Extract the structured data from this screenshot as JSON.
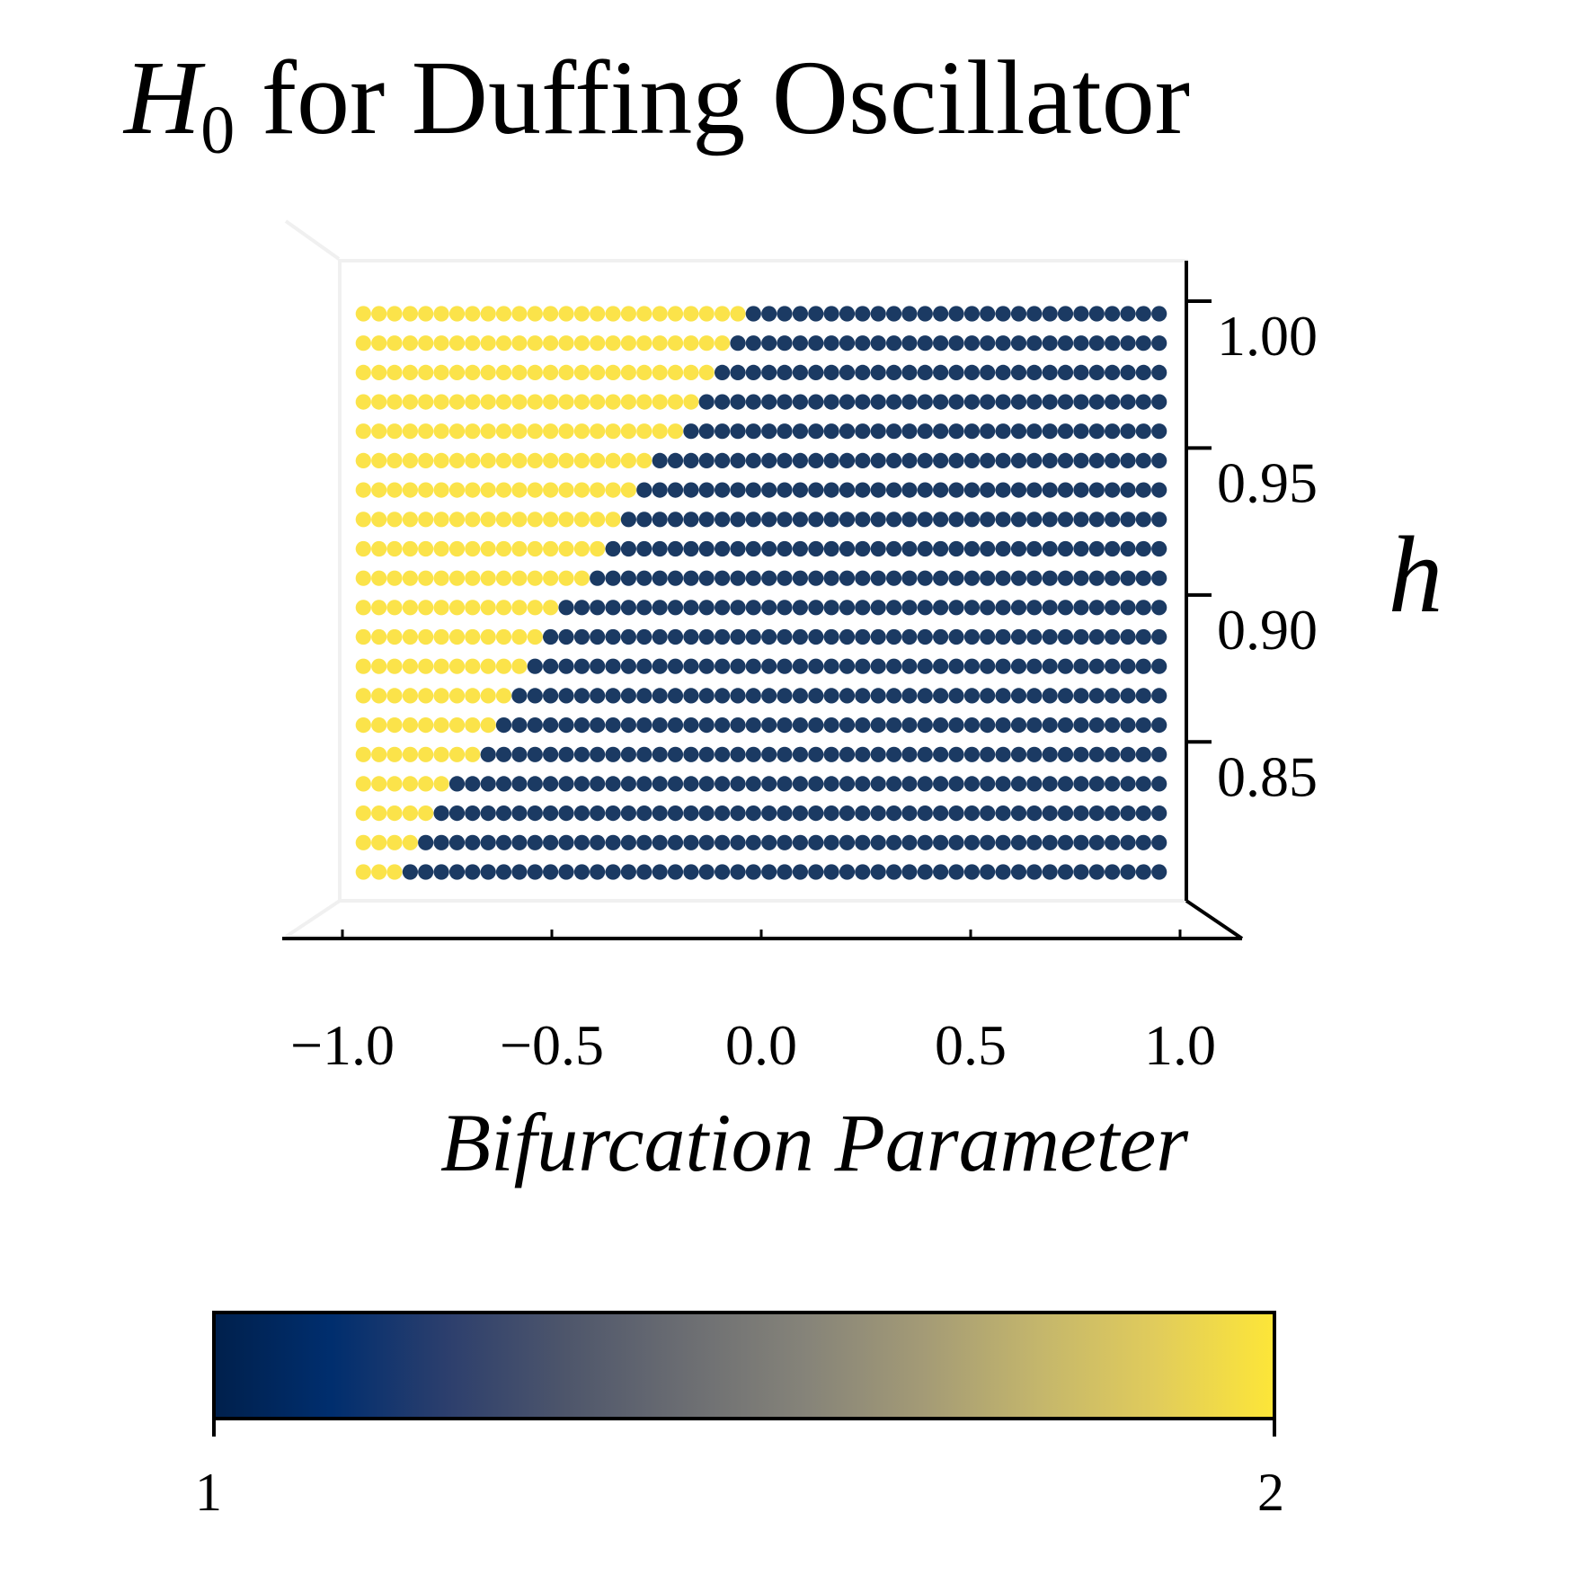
{
  "chart_data": {
    "type": "scatter",
    "title": {
      "main": "H",
      "subscript": "0",
      "rest": " for Duffing Oscillator"
    },
    "xlabel": "Bifurcation Parameter",
    "ylabel": "h",
    "xlim": [
      -1.1,
      1.1
    ],
    "ylim": [
      0.796,
      1.012
    ],
    "x_ticks": [
      -1.0,
      -0.5,
      0.0,
      0.5,
      1.0
    ],
    "x_tick_labels": [
      "−1.0",
      "−0.5",
      "0.0",
      "0.5",
      "1.0"
    ],
    "y_ticks": [
      0.85,
      0.9,
      0.95,
      1.0
    ],
    "y_tick_labels": [
      "0.85",
      "0.90",
      "0.95",
      "1.00"
    ],
    "grid": {
      "x_min": -0.95,
      "x_max": 0.95,
      "x_count": 52,
      "y_min": 0.81,
      "y_max": 1.0,
      "y_count": 20
    },
    "description": "Each dot is a grid point (bifurcation parameter, h) colored by H0 value; yellow = 2, dark blue = 1",
    "rows": [
      {
        "h": 1.0,
        "boundary_index": 25
      },
      {
        "h": 0.99,
        "boundary_index": 24
      },
      {
        "h": 0.98,
        "boundary_index": 23
      },
      {
        "h": 0.97,
        "boundary_index": 22
      },
      {
        "h": 0.96,
        "boundary_index": 21
      },
      {
        "h": 0.95,
        "boundary_index": 19
      },
      {
        "h": 0.94,
        "boundary_index": 18
      },
      {
        "h": 0.93,
        "boundary_index": 17
      },
      {
        "h": 0.92,
        "boundary_index": 16
      },
      {
        "h": 0.91,
        "boundary_index": 15
      },
      {
        "h": 0.9,
        "boundary_index": 13
      },
      {
        "h": 0.89,
        "boundary_index": 12
      },
      {
        "h": 0.88,
        "boundary_index": 11
      },
      {
        "h": 0.87,
        "boundary_index": 10
      },
      {
        "h": 0.86,
        "boundary_index": 9
      },
      {
        "h": 0.85,
        "boundary_index": 8
      },
      {
        "h": 0.84,
        "boundary_index": 6
      },
      {
        "h": 0.83,
        "boundary_index": 5
      },
      {
        "h": 0.82,
        "boundary_index": 4
      },
      {
        "h": 0.81,
        "boundary_index": 3
      }
    ],
    "value_left_of_boundary": 2,
    "value_right_of_boundary": 1,
    "colors": {
      "value_2": "#fbe34a",
      "value_1": "#1b3a63"
    },
    "colorbar": {
      "min_label": "1",
      "max_label": "2",
      "min": 1,
      "max": 2,
      "colormap": "cividis",
      "stops": [
        "#00204c",
        "#002e6e",
        "#2d3f6d",
        "#4e566b",
        "#6b6d72",
        "#858379",
        "#a39a76",
        "#c4b66c",
        "#e1cc5b",
        "#fde638"
      ]
    }
  }
}
